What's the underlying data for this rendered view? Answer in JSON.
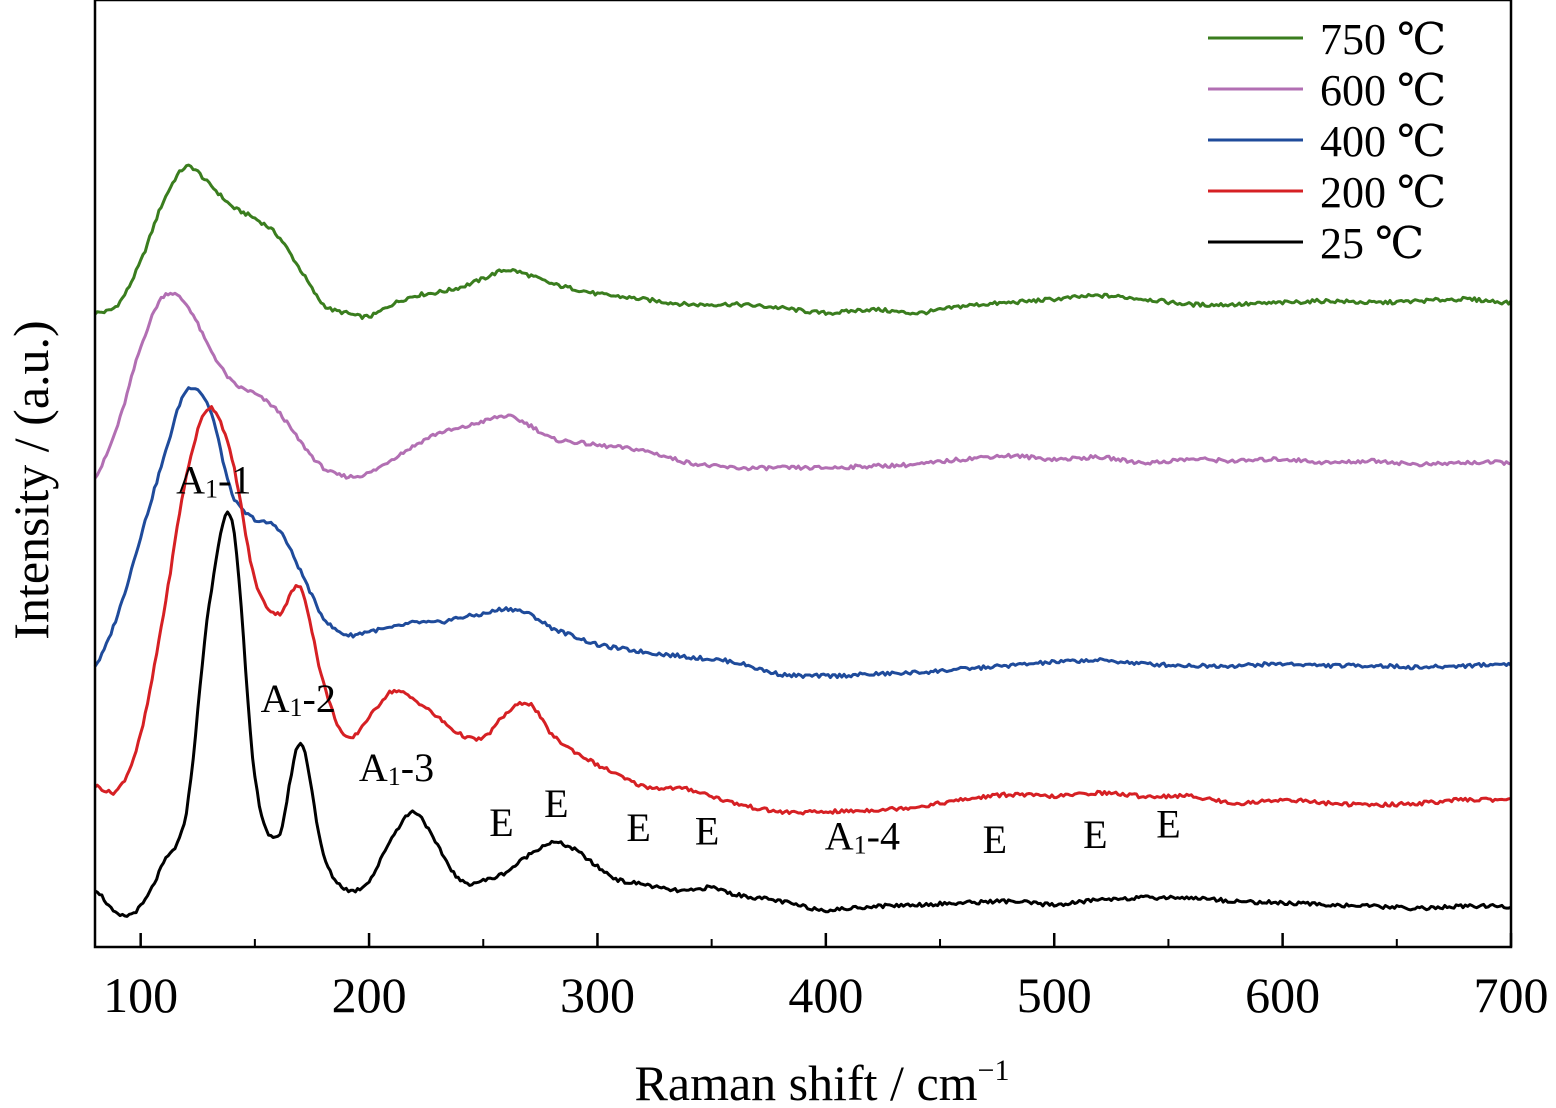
{
  "chart_data": {
    "type": "line",
    "title": "",
    "xlabel": "Raman shift / cm",
    "xlabel_sup": "−1",
    "ylabel": "Intensity / (a.u.)",
    "xlim": [
      80,
      700
    ],
    "xticks": [
      "100",
      "200",
      "300",
      "400",
      "500",
      "600",
      "700"
    ],
    "grid": false,
    "legend_position": "top-right",
    "series": [
      {
        "name": "750 ℃",
        "color": "#3a7d1e",
        "offset": 3.5,
        "x": [
          80,
          90,
          100,
          110,
          120,
          130,
          140,
          150,
          160,
          170,
          180,
          190,
          200,
          210,
          220,
          230,
          240,
          250,
          260,
          270,
          280,
          290,
          300,
          320,
          340,
          360,
          380,
          400,
          420,
          440,
          460,
          480,
          500,
          520,
          540,
          560,
          580,
          600,
          620,
          640,
          660,
          680,
          700
        ],
        "y": [
          0.0,
          0.05,
          0.3,
          0.65,
          0.85,
          0.75,
          0.62,
          0.55,
          0.45,
          0.25,
          0.05,
          0.0,
          -0.02,
          0.05,
          0.1,
          0.12,
          0.15,
          0.2,
          0.25,
          0.22,
          0.17,
          0.14,
          0.11,
          0.08,
          0.05,
          0.05,
          0.03,
          0.0,
          0.02,
          0.0,
          0.04,
          0.06,
          0.08,
          0.1,
          0.08,
          0.05,
          0.05,
          0.06,
          0.07,
          0.06,
          0.07,
          0.08,
          0.06
        ]
      },
      {
        "name": "600 ℃",
        "color": "#b26fb3",
        "offset": 2.55,
        "x": [
          80,
          90,
          100,
          110,
          120,
          130,
          140,
          150,
          160,
          170,
          180,
          190,
          200,
          210,
          220,
          230,
          240,
          250,
          260,
          270,
          280,
          290,
          300,
          320,
          340,
          360,
          380,
          400,
          420,
          440,
          460,
          480,
          500,
          520,
          540,
          560,
          580,
          600,
          620,
          640,
          660,
          680,
          700
        ],
        "y": [
          0.0,
          0.3,
          0.75,
          1.05,
          1.0,
          0.75,
          0.55,
          0.48,
          0.38,
          0.2,
          0.05,
          0.0,
          0.02,
          0.1,
          0.18,
          0.25,
          0.28,
          0.32,
          0.35,
          0.3,
          0.22,
          0.2,
          0.18,
          0.15,
          0.08,
          0.05,
          0.05,
          0.05,
          0.06,
          0.07,
          0.1,
          0.12,
          0.1,
          0.11,
          0.08,
          0.1,
          0.09,
          0.1,
          0.08,
          0.09,
          0.07,
          0.08,
          0.08
        ]
      },
      {
        "name": "400 ℃",
        "color": "#1f4b9b",
        "offset": 1.45,
        "x": [
          80,
          90,
          100,
          110,
          120,
          130,
          140,
          150,
          160,
          170,
          180,
          190,
          200,
          210,
          220,
          230,
          240,
          250,
          260,
          270,
          280,
          290,
          300,
          320,
          340,
          360,
          380,
          400,
          420,
          440,
          460,
          480,
          500,
          520,
          540,
          560,
          580,
          600,
          620,
          640,
          660,
          680,
          700
        ],
        "y": [
          0.0,
          0.3,
          0.75,
          1.2,
          1.6,
          1.5,
          1.0,
          0.85,
          0.8,
          0.55,
          0.28,
          0.18,
          0.2,
          0.22,
          0.25,
          0.25,
          0.28,
          0.3,
          0.33,
          0.3,
          0.22,
          0.17,
          0.12,
          0.08,
          0.05,
          0.02,
          -0.05,
          -0.06,
          -0.05,
          -0.04,
          -0.02,
          0.0,
          0.02,
          0.03,
          0.01,
          0.0,
          0.0,
          0.01,
          0.0,
          0.0,
          -0.01,
          0.0,
          0.01
        ]
      },
      {
        "name": "200 ℃",
        "color": "#d62024",
        "offset": 0.75,
        "x": [
          80,
          90,
          100,
          110,
          120,
          130,
          140,
          150,
          160,
          170,
          180,
          190,
          200,
          210,
          220,
          230,
          240,
          250,
          260,
          270,
          280,
          290,
          300,
          320,
          340,
          360,
          380,
          400,
          420,
          440,
          460,
          480,
          500,
          520,
          540,
          560,
          580,
          600,
          620,
          640,
          660,
          680,
          700
        ],
        "y": [
          0.0,
          -0.02,
          0.3,
          1.0,
          1.8,
          2.2,
          1.9,
          1.2,
          1.0,
          1.15,
          0.6,
          0.28,
          0.4,
          0.55,
          0.5,
          0.4,
          0.3,
          0.28,
          0.42,
          0.48,
          0.3,
          0.2,
          0.12,
          0.0,
          -0.02,
          -0.1,
          -0.15,
          -0.15,
          -0.14,
          -0.12,
          -0.08,
          -0.05,
          -0.06,
          -0.04,
          -0.06,
          -0.06,
          -0.1,
          -0.08,
          -0.1,
          -0.11,
          -0.1,
          -0.08,
          -0.08
        ]
      },
      {
        "name": "25 ℃",
        "color": "#000000",
        "offset": 0.0,
        "x": [
          80,
          90,
          100,
          110,
          120,
          130,
          140,
          150,
          160,
          170,
          180,
          190,
          200,
          210,
          220,
          230,
          240,
          250,
          260,
          270,
          280,
          290,
          300,
          310,
          320,
          330,
          340,
          350,
          360,
          370,
          380,
          390,
          400,
          420,
          440,
          460,
          480,
          500,
          520,
          540,
          560,
          580,
          600,
          620,
          640,
          660,
          680,
          700
        ],
        "y": [
          0.15,
          0.0,
          0.05,
          0.3,
          0.6,
          1.8,
          2.3,
          0.8,
          0.45,
          1.0,
          0.35,
          0.15,
          0.2,
          0.45,
          0.6,
          0.4,
          0.2,
          0.2,
          0.25,
          0.35,
          0.42,
          0.38,
          0.28,
          0.2,
          0.18,
          0.15,
          0.14,
          0.16,
          0.12,
          0.1,
          0.08,
          0.05,
          0.03,
          0.05,
          0.06,
          0.07,
          0.08,
          0.06,
          0.09,
          0.1,
          0.1,
          0.08,
          0.07,
          0.06,
          0.05,
          0.04,
          0.05,
          0.05
        ]
      }
    ],
    "annotations": [
      {
        "main": "A",
        "sub": "1",
        "suffix": "-1",
        "x": 132,
        "y": 2.45
      },
      {
        "main": "A",
        "sub": "1",
        "suffix": "-2",
        "x": 169,
        "y": 1.18
      },
      {
        "main": "A",
        "sub": "1",
        "suffix": "-3",
        "x": 212,
        "y": 0.78
      },
      {
        "main": "E",
        "sub": "",
        "suffix": "",
        "x": 258,
        "y": 0.46
      },
      {
        "main": "E",
        "sub": "",
        "suffix": "",
        "x": 282,
        "y": 0.57
      },
      {
        "main": "E",
        "sub": "",
        "suffix": "",
        "x": 318,
        "y": 0.43
      },
      {
        "main": "E",
        "sub": "",
        "suffix": "",
        "x": 348,
        "y": 0.41
      },
      {
        "main": "A",
        "sub": "1",
        "suffix": "-4",
        "x": 416,
        "y": 0.38
      },
      {
        "main": "E",
        "sub": "",
        "suffix": "",
        "x": 474,
        "y": 0.36
      },
      {
        "main": "E",
        "sub": "",
        "suffix": "",
        "x": 518,
        "y": 0.39
      },
      {
        "main": "E",
        "sub": "",
        "suffix": "",
        "x": 550,
        "y": 0.45
      }
    ]
  }
}
